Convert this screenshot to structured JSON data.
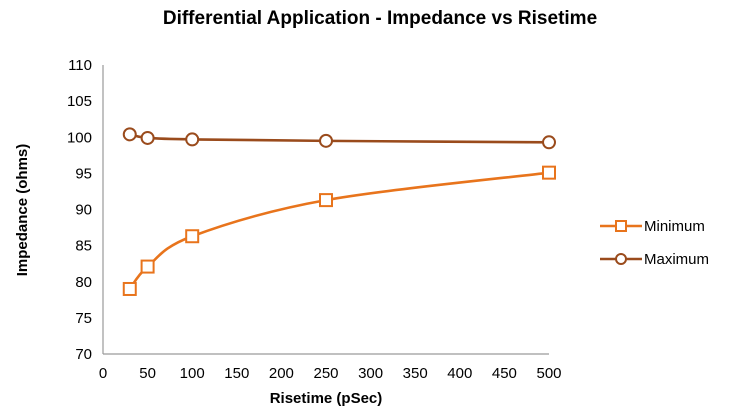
{
  "chart_data": {
    "type": "line",
    "title": "Differential Application - Impedance vs Risetime",
    "xlabel": "Risetime  (pSec)",
    "ylabel": "Impedance  (ohms)",
    "xlim": [
      0,
      500
    ],
    "ylim": [
      70,
      110
    ],
    "xticks": [
      0,
      50,
      100,
      150,
      200,
      250,
      300,
      350,
      400,
      450,
      500
    ],
    "yticks": [
      70,
      75,
      80,
      85,
      90,
      95,
      100,
      105,
      110
    ],
    "grid": "none",
    "legend_position": "right",
    "series": [
      {
        "name": "Minimum",
        "color": "#E8741C",
        "marker": "square",
        "smooth": true,
        "x": [
          30,
          50,
          100,
          250,
          500
        ],
        "y": [
          79,
          82.1,
          86.3,
          91.3,
          95.1
        ]
      },
      {
        "name": "Maximum",
        "color": "#9A4B1C",
        "marker": "circle",
        "smooth": true,
        "x": [
          30,
          50,
          100,
          250,
          500
        ],
        "y": [
          100.4,
          99.9,
          99.7,
          99.5,
          99.3
        ]
      }
    ]
  }
}
